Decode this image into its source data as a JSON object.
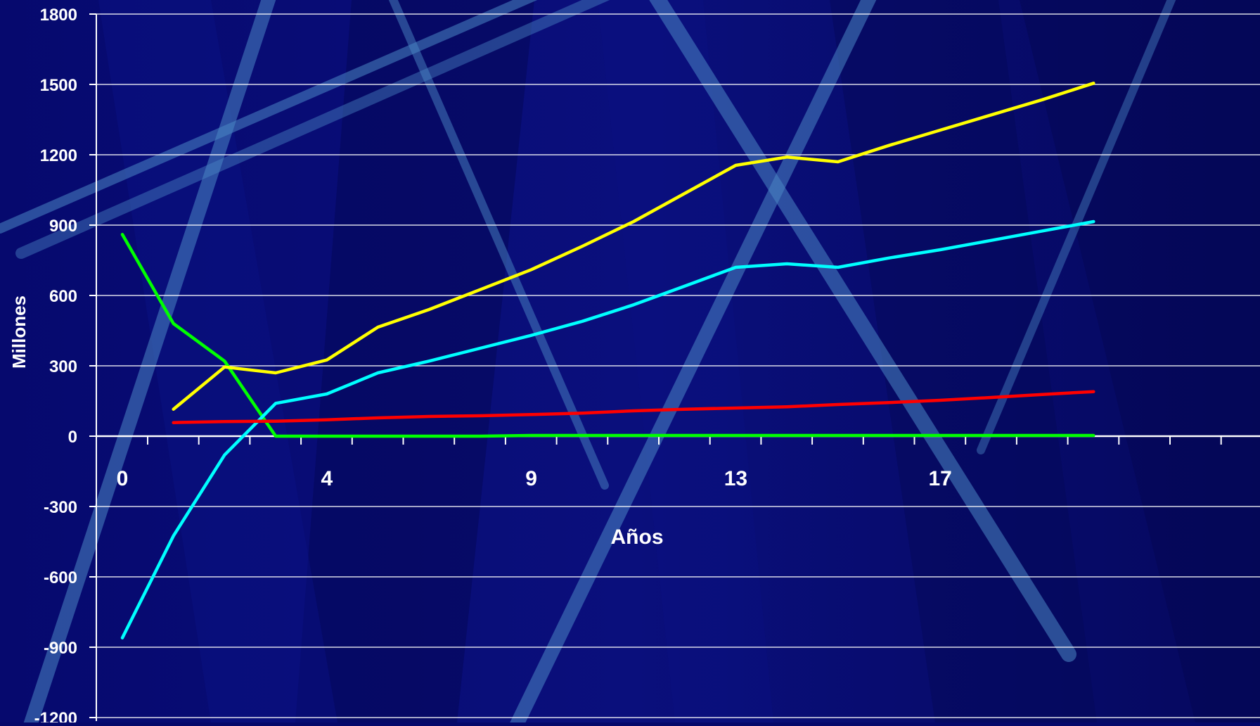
{
  "chart_data": {
    "type": "line",
    "title": "",
    "xlabel": "Años",
    "ylabel": "Millones",
    "ylim": [
      -1200,
      1800
    ],
    "yticks": [
      1800,
      1500,
      1200,
      900,
      600,
      300,
      0,
      -300,
      -600,
      -900,
      -1200
    ],
    "xtick_labels": [
      {
        "label": "0",
        "x": 0
      },
      {
        "label": "4",
        "x": 4
      },
      {
        "label": "9",
        "x": 8
      },
      {
        "label": "13",
        "x": 12
      },
      {
        "label": "17",
        "x": 16
      }
    ],
    "x_minor_ticks": [
      0,
      1,
      2,
      3,
      4,
      5,
      6,
      7,
      8,
      9,
      10,
      11,
      12,
      13,
      14,
      15,
      16,
      17,
      18,
      19,
      20,
      21
    ],
    "grid": true,
    "series": [
      {
        "color": "#00ff00",
        "points": [
          [
            0,
            860
          ],
          [
            1,
            480
          ],
          [
            2,
            320
          ],
          [
            3,
            0
          ],
          [
            4,
            0
          ],
          [
            5,
            0
          ],
          [
            6,
            0
          ],
          [
            7,
            0
          ],
          [
            8,
            3
          ],
          [
            9,
            3
          ],
          [
            10,
            3
          ],
          [
            11,
            3
          ],
          [
            12,
            3
          ],
          [
            13,
            3
          ],
          [
            14,
            3
          ],
          [
            15,
            3
          ],
          [
            16,
            3
          ],
          [
            17,
            3
          ],
          [
            18,
            3
          ],
          [
            19,
            3
          ]
        ]
      },
      {
        "color": "#ffff00",
        "points": [
          [
            1,
            115
          ],
          [
            2,
            295
          ],
          [
            3,
            270
          ],
          [
            4,
            325
          ],
          [
            5,
            465
          ],
          [
            6,
            540
          ],
          [
            7,
            625
          ],
          [
            8,
            710
          ],
          [
            9,
            810
          ],
          [
            10,
            915
          ],
          [
            11,
            1035
          ],
          [
            12,
            1155
          ],
          [
            13,
            1190
          ],
          [
            14,
            1170
          ],
          [
            15,
            1240
          ],
          [
            16,
            1305
          ],
          [
            17,
            1370
          ],
          [
            18,
            1435
          ],
          [
            19,
            1505
          ]
        ]
      },
      {
        "color": "#00ffff",
        "points": [
          [
            0,
            -860
          ],
          [
            1,
            -425
          ],
          [
            2,
            -80
          ],
          [
            3,
            140
          ],
          [
            4,
            180
          ],
          [
            5,
            270
          ],
          [
            6,
            320
          ],
          [
            7,
            375
          ],
          [
            8,
            430
          ],
          [
            9,
            490
          ],
          [
            10,
            560
          ],
          [
            11,
            640
          ],
          [
            12,
            720
          ],
          [
            13,
            735
          ],
          [
            14,
            720
          ],
          [
            15,
            760
          ],
          [
            16,
            795
          ],
          [
            17,
            835
          ],
          [
            18,
            875
          ],
          [
            19,
            915
          ]
        ]
      },
      {
        "color": "#ff0000",
        "points": [
          [
            1,
            58
          ],
          [
            2,
            62
          ],
          [
            3,
            64
          ],
          [
            4,
            70
          ],
          [
            5,
            78
          ],
          [
            6,
            84
          ],
          [
            7,
            87
          ],
          [
            8,
            92
          ],
          [
            9,
            98
          ],
          [
            10,
            108
          ],
          [
            11,
            115
          ],
          [
            12,
            120
          ],
          [
            13,
            125
          ],
          [
            14,
            135
          ],
          [
            15,
            143
          ],
          [
            16,
            153
          ],
          [
            17,
            165
          ],
          [
            18,
            178
          ],
          [
            19,
            190
          ]
        ]
      }
    ]
  }
}
